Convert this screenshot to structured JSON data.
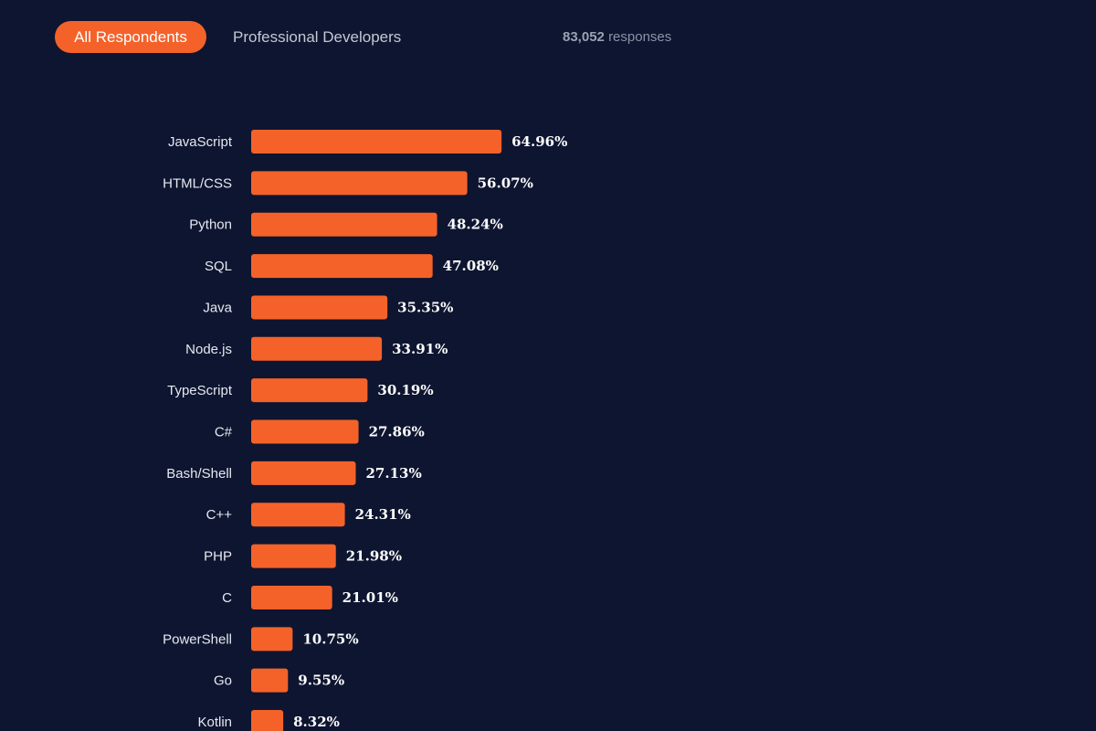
{
  "filters": {
    "tabs": [
      {
        "label": "All Respondents",
        "active": true
      },
      {
        "label": "Professional Developers",
        "active": false
      }
    ]
  },
  "responses": {
    "count": "83,052",
    "label": "responses"
  },
  "colors": {
    "background": "#0e1530",
    "bar": "#f4622a",
    "active_tab": "#f4622a"
  },
  "chart_data": {
    "type": "bar",
    "orientation": "horizontal",
    "title": "",
    "xlabel": "",
    "ylabel": "",
    "xlim": [
      0,
      100
    ],
    "unit": "%",
    "grid": false,
    "categories": [
      "JavaScript",
      "HTML/CSS",
      "Python",
      "SQL",
      "Java",
      "Node.js",
      "TypeScript",
      "C#",
      "Bash/Shell",
      "C++",
      "PHP",
      "C",
      "PowerShell",
      "Go",
      "Kotlin"
    ],
    "values": [
      64.96,
      56.07,
      48.24,
      47.08,
      35.35,
      33.91,
      30.19,
      27.86,
      27.13,
      24.31,
      21.98,
      21.01,
      10.75,
      9.55,
      8.32
    ],
    "value_labels": [
      "64.96%",
      "56.07%",
      "48.24%",
      "47.08%",
      "35.35%",
      "33.91%",
      "30.19%",
      "27.86%",
      "27.13%",
      "24.31%",
      "21.98%",
      "21.01%",
      "10.75%",
      "9.55%",
      "8.32%"
    ]
  }
}
